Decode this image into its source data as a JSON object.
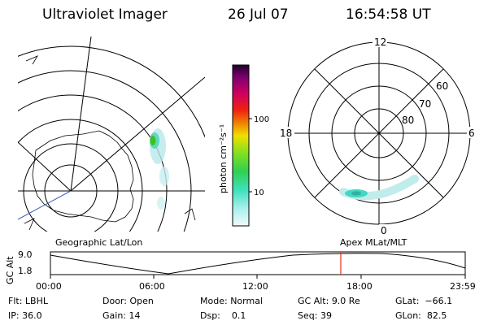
{
  "header": {
    "title": "Ultraviolet Imager",
    "date": "26 Jul 07",
    "time": "16:54:58 UT"
  },
  "colorbar": {
    "label": "photon cm⁻²s⁻¹",
    "ticks": [
      "100",
      "10"
    ]
  },
  "polar_plot": {
    "mlt_labels": [
      "12",
      "18",
      "6",
      "0"
    ],
    "lat_labels": [
      "60",
      "70",
      "80"
    ]
  },
  "timeline": {
    "left_title": "Geographic Lat/Lon",
    "right_title": "Apex MLat/MLT",
    "ylabel": "GC Alt",
    "yticks": [
      "9.0",
      "1.8"
    ],
    "xticks": [
      "00:00",
      "06:00",
      "12:00",
      "18:00",
      "23:59"
    ],
    "marker_color": "#e03020"
  },
  "info": {
    "row1": [
      {
        "label": "Flt:",
        "value": "LBHL"
      },
      {
        "label": "Door:",
        "value": "Open"
      },
      {
        "label": "Mode:",
        "value": "Normal"
      },
      {
        "label": "GC Alt:",
        "value": "9.0 Re"
      },
      {
        "label": "GLat:",
        "value": "−66.1"
      }
    ],
    "row2": [
      {
        "label": "IP:",
        "value": "36.0"
      },
      {
        "label": "Gain:",
        "value": "14"
      },
      {
        "label": "Dsp:",
        "value": "0.1"
      },
      {
        "label": "Seq:",
        "value": "39"
      },
      {
        "label": "GLon:",
        "value": "82.5"
      }
    ]
  }
}
